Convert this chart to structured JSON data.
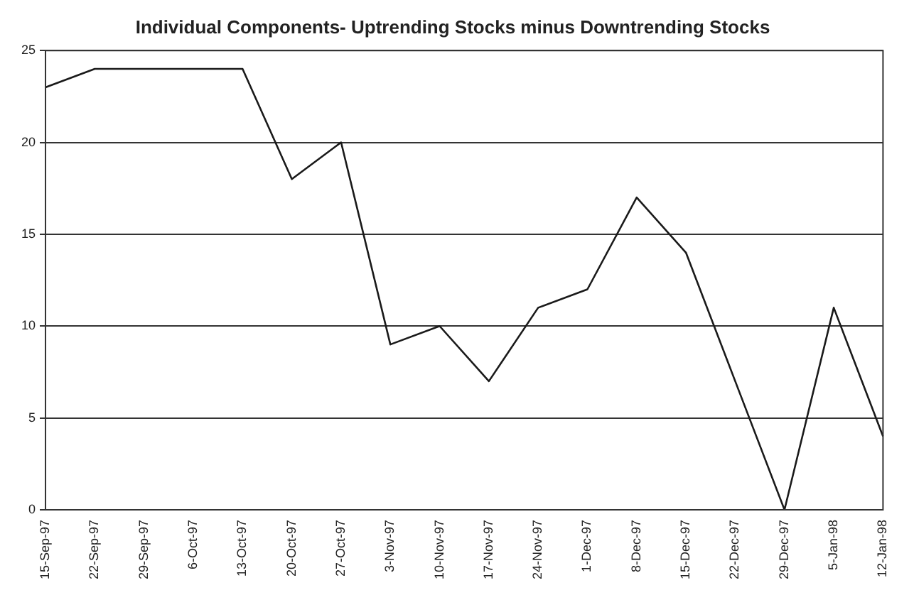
{
  "chart_data": {
    "type": "line",
    "title": "Individual Components- Uptrending Stocks minus Downtrending Stocks",
    "categories": [
      "15-Sep-97",
      "22-Sep-97",
      "29-Sep-97",
      "6-Oct-97",
      "13-Oct-97",
      "20-Oct-97",
      "27-Oct-97",
      "3-Nov-97",
      "10-Nov-97",
      "17-Nov-97",
      "24-Nov-97",
      "1-Dec-97",
      "8-Dec-97",
      "15-Dec-97",
      "22-Dec-97",
      "29-Dec-97",
      "5-Jan-98",
      "12-Jan-98"
    ],
    "series": [
      {
        "color": "#1a1a1a",
        "values": [
          23,
          24,
          24,
          24,
          24,
          18,
          20,
          9,
          10,
          7,
          11,
          12,
          17,
          14,
          7,
          0,
          11,
          4
        ]
      }
    ],
    "ylim": [
      0,
      25
    ],
    "yticks": [
      0,
      5,
      10,
      15,
      20,
      25
    ],
    "grid": "y",
    "legend": false,
    "marker": "none",
    "line_style": "solid"
  }
}
